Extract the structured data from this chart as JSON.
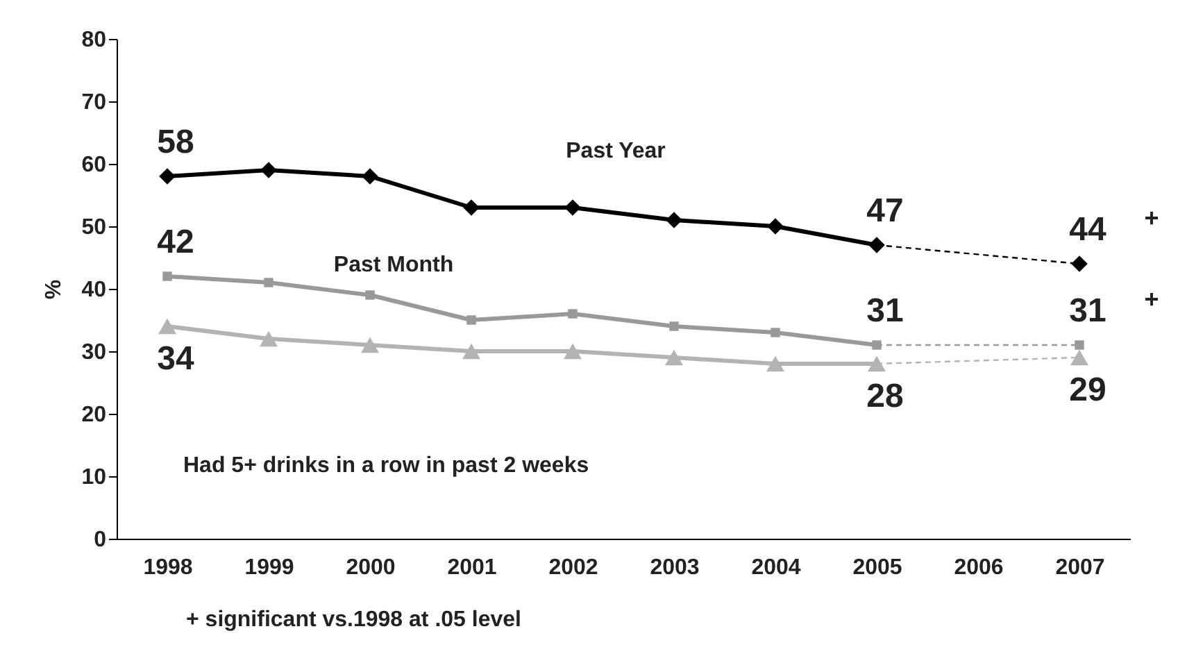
{
  "chart_data": {
    "type": "line",
    "ylabel": "%",
    "categories": [
      "1998",
      "1999",
      "2000",
      "2001",
      "2002",
      "2003",
      "2004",
      "2005",
      "2006",
      "2007"
    ],
    "series": [
      {
        "name": "Past Year",
        "color": "#000000",
        "marker": "diamond",
        "values": [
          58,
          59,
          58,
          53,
          53,
          51,
          50,
          47,
          null,
          44
        ],
        "value_labels": [
          "58",
          null,
          null,
          null,
          null,
          null,
          null,
          "47",
          null,
          "44"
        ]
      },
      {
        "name": "Past Month",
        "color": "#999999",
        "marker": "square",
        "values": [
          42,
          41,
          39,
          35,
          36,
          34,
          33,
          31,
          null,
          31
        ],
        "value_labels": [
          "42",
          null,
          null,
          null,
          null,
          null,
          null,
          "31",
          null,
          "31"
        ]
      },
      {
        "color": "#b3b3b3",
        "marker": "triangle",
        "values": [
          34,
          32,
          31,
          30,
          30,
          29,
          28,
          28,
          null,
          29
        ],
        "value_labels": [
          "34",
          null,
          null,
          null,
          null,
          null,
          null,
          "28",
          null,
          "29"
        ]
      }
    ],
    "ylim": [
      0,
      80
    ],
    "yticks": [
      0,
      10,
      20,
      30,
      40,
      50,
      60,
      70,
      80
    ],
    "grid": false,
    "annotations": [
      {
        "text": "+",
        "x": "2007",
        "y": 44
      },
      {
        "text": "+",
        "x": "2007",
        "y": 31
      },
      "Had 5+ drinks in a row in past 2 weeks",
      "+ significant vs.1998 at .05 level"
    ]
  }
}
